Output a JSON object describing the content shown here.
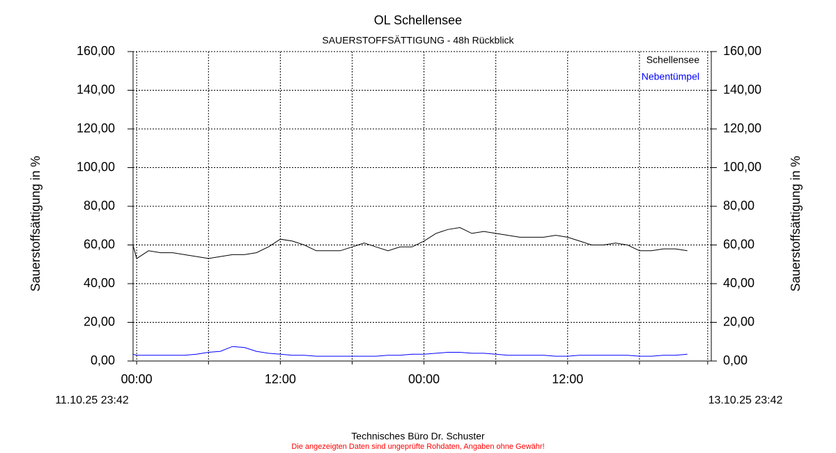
{
  "chart_data": {
    "type": "line",
    "title": "OL Schellensee",
    "subtitle": "SAUERSTOFFSÄTTIGUNG - 48h Rückblick",
    "ylabel": "Sauerstoffsättigung in %",
    "y2label": "Sauerstoffsättigung in %",
    "start_label": "11.10.25 23:42",
    "end_label": "13.10.25 23:42",
    "footer": "Technisches Büro Dr. Schuster",
    "disclaimer": "Die angezeigten Daten sind ungeprüfte Rohdaten, Angaben ohne Gewähr!",
    "grid": true,
    "legend": "top-right",
    "xlim": [
      23.7,
      72
    ],
    "xticks": [
      {
        "value": 24,
        "label": "00:00"
      },
      {
        "value": 30,
        "label": null
      },
      {
        "value": 36,
        "label": "12:00"
      },
      {
        "value": 42,
        "label": null
      },
      {
        "value": 48,
        "label": "00:00"
      },
      {
        "value": 54,
        "label": null
      },
      {
        "value": 60,
        "label": "12:00"
      },
      {
        "value": 66,
        "label": null
      },
      {
        "value": 71.7,
        "label": null
      }
    ],
    "ylim": [
      0,
      160
    ],
    "yticks": [
      {
        "value": 0,
        "label": "0,00"
      },
      {
        "value": 20,
        "label": "20,00"
      },
      {
        "value": 40,
        "label": "40,00"
      },
      {
        "value": 60,
        "label": "60,00"
      },
      {
        "value": 80,
        "label": "80,00"
      },
      {
        "value": 100,
        "label": "100,00"
      },
      {
        "value": 120,
        "label": "120,00"
      },
      {
        "value": 140,
        "label": "140,00"
      },
      {
        "value": 160,
        "label": "160,00"
      }
    ],
    "x": [
      23.7,
      24,
      25,
      26,
      27,
      28,
      29,
      30,
      31,
      32,
      33,
      34,
      35,
      36,
      37,
      38,
      39,
      40,
      41,
      42,
      43,
      44,
      45,
      46,
      47,
      48,
      49,
      50,
      51,
      52,
      53,
      54,
      55,
      56,
      57,
      58,
      59,
      60,
      61,
      62,
      63,
      64,
      65,
      66,
      67,
      68,
      69,
      70
    ],
    "series": [
      {
        "name": "Schellensee",
        "color": "#000000",
        "values": [
          59.8,
          53,
          57,
          56,
          56,
          55,
          54,
          53,
          54,
          55,
          55,
          56,
          59,
          63,
          62,
          60,
          57,
          57,
          57,
          59,
          61,
          59,
          57,
          59,
          59,
          62,
          66,
          68,
          69,
          66,
          67,
          66,
          65,
          64,
          64,
          64,
          65,
          64,
          62,
          60,
          60,
          61,
          60,
          57,
          57,
          58,
          58,
          57
        ]
      },
      {
        "name": "Nebentümpel",
        "color": "#0000ff",
        "values": [
          3.5,
          3,
          3,
          3,
          3,
          3,
          3.5,
          4.5,
          5,
          7.5,
          7,
          5,
          4,
          3.5,
          3,
          3,
          2.5,
          2.5,
          2.5,
          2.5,
          2.5,
          2.5,
          3,
          3,
          3.5,
          3.5,
          4,
          4.5,
          4.5,
          4,
          4,
          3.5,
          3,
          3,
          3,
          3,
          2.5,
          2.5,
          3,
          3,
          3,
          3,
          3,
          2.5,
          2.5,
          3,
          3,
          3.5
        ]
      }
    ]
  }
}
